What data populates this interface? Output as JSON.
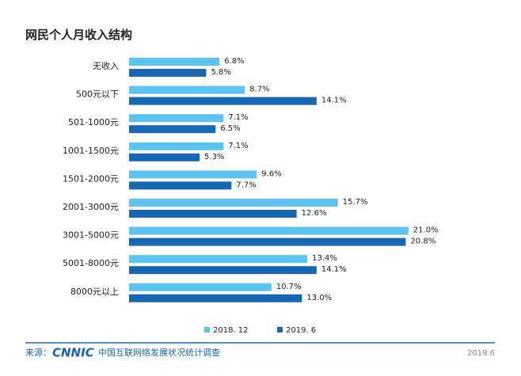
{
  "chart_data": {
    "type": "bar",
    "orientation": "horizontal",
    "title": "网民个人月收入结构",
    "categories": [
      "无收入",
      "500元以下",
      "501-1000元",
      "1001-1500元",
      "1501-2000元",
      "2001-3000元",
      "3001-5000元",
      "5001-8000元",
      "8000元以上"
    ],
    "series": [
      {
        "name": "2018. 12",
        "color": "#5bc4f0",
        "values": [
          6.8,
          8.7,
          7.1,
          7.1,
          9.6,
          15.7,
          21.0,
          13.4,
          10.7
        ],
        "value_labels": [
          "6.8%",
          "8.7%",
          "7.1%",
          "7.1%",
          "9.6%",
          "15.7%",
          "21.0%",
          "13.4%",
          "10.7%"
        ]
      },
      {
        "name": "2019. 6",
        "color": "#1767b3",
        "values": [
          5.8,
          14.1,
          6.5,
          5.3,
          7.7,
          12.6,
          20.8,
          14.1,
          13.0
        ],
        "value_labels": [
          "5.8%",
          "14.1%",
          "6.5%",
          "5.3%",
          "7.7%",
          "12.6%",
          "20.8%",
          "14.1%",
          "13.0%"
        ]
      }
    ],
    "xlim": [
      0,
      25
    ],
    "source_label": "来源：",
    "source_logo": "CNNIC",
    "source_text": "中国互联网络发展状况统计调查",
    "page_label": "2019.6"
  }
}
